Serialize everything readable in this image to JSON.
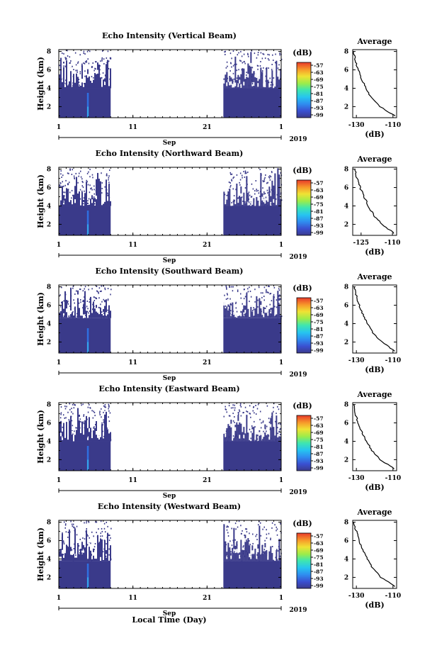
{
  "figure": {
    "xlabel": "Local Time (Day)",
    "month_label": "Sep",
    "year_label": "2019",
    "average_title": "Average",
    "average_xlabel": "(dB)",
    "cbar_unit": "(dB)"
  },
  "chart_data": [
    {
      "type": "heatmap",
      "title": "Echo Intensity (Vertical Beam)",
      "ylabel": "Height (km)",
      "xlim": [
        1,
        31
      ],
      "ylim": [
        0.8,
        8.2
      ],
      "x_ticks": [
        "1",
        "11",
        "21",
        "1"
      ],
      "y_ticks": [
        "2",
        "4",
        "6",
        "8"
      ],
      "data_gap_days": [
        8.0,
        23.2
      ],
      "colorbar": {
        "unit": "(dB)",
        "ticks": [
          "-57",
          "-63",
          "-69",
          "-75",
          "-81",
          "-87",
          "-93",
          "-99"
        ]
      },
      "average_profile": {
        "title": "Average",
        "xlabel": "(dB)",
        "x_ticks": [
          "-130",
          "-110"
        ],
        "y_ticks": [
          "2",
          "4",
          "6",
          "8"
        ],
        "xlim": [
          -132,
          -108
        ],
        "height_km": [
          1,
          2,
          3,
          4,
          5,
          6,
          7,
          8
        ],
        "intensity_db": [
          -109,
          -117,
          -122,
          -124.5,
          -127,
          -129,
          -130.5,
          -131.5
        ]
      }
    },
    {
      "type": "heatmap",
      "title": "Echo Intensity (Northward Beam)",
      "ylabel": "Height (km)",
      "xlim": [
        1,
        31
      ],
      "ylim": [
        0.8,
        8.2
      ],
      "x_ticks": [
        "1",
        "11",
        "21",
        "1"
      ],
      "y_ticks": [
        "2",
        "4",
        "6",
        "8"
      ],
      "data_gap_days": [
        8.0,
        23.2
      ],
      "colorbar": {
        "unit": "(dB)",
        "ticks": [
          "-57",
          "-63",
          "-69",
          "-75",
          "-81",
          "-87",
          "-93",
          "-99"
        ]
      },
      "average_profile": {
        "title": "Average",
        "xlabel": "(dB)",
        "x_ticks": [
          "-125",
          "-110"
        ],
        "y_ticks": [
          "2",
          "4",
          "6",
          "8"
        ],
        "xlim": [
          -129,
          -108
        ],
        "height_km": [
          1,
          2,
          3,
          4,
          5,
          6,
          7,
          8
        ],
        "intensity_db": [
          -109,
          -115,
          -119,
          -121.5,
          -123.5,
          -125.5,
          -127,
          -128
        ]
      }
    },
    {
      "type": "heatmap",
      "title": "Echo Intensity (Southward Beam)",
      "ylabel": "Height (km)",
      "xlim": [
        1,
        31
      ],
      "ylim": [
        0.8,
        8.2
      ],
      "x_ticks": [
        "1",
        "11",
        "21",
        "1"
      ],
      "y_ticks": [
        "2",
        "4",
        "6",
        "8"
      ],
      "data_gap_days": [
        8.0,
        23.2
      ],
      "colorbar": {
        "unit": "(dB)",
        "ticks": [
          "-57",
          "-63",
          "-69",
          "-75",
          "-81",
          "-87",
          "-93",
          "-99"
        ]
      },
      "average_profile": {
        "title": "Average",
        "xlabel": "(dB)",
        "x_ticks": [
          "-130",
          "-110"
        ],
        "y_ticks": [
          "2",
          "4",
          "6",
          "8"
        ],
        "xlim": [
          -132,
          -108
        ],
        "height_km": [
          1,
          2,
          3,
          4,
          5,
          6,
          7,
          8
        ],
        "intensity_db": [
          -109,
          -116,
          -121,
          -124,
          -126.5,
          -128.5,
          -130,
          -131
        ]
      }
    },
    {
      "type": "heatmap",
      "title": "Echo Intensity (Eastward Beam)",
      "ylabel": "Height (km)",
      "xlim": [
        1,
        31
      ],
      "ylim": [
        0.8,
        8.2
      ],
      "x_ticks": [
        "1",
        "11",
        "21",
        "1"
      ],
      "y_ticks": [
        "2",
        "4",
        "6",
        "8"
      ],
      "data_gap_days": [
        8.0,
        23.2
      ],
      "colorbar": {
        "unit": "(dB)",
        "ticks": [
          "-57",
          "-63",
          "-69",
          "-75",
          "-81",
          "-87",
          "-93",
          "-99"
        ]
      },
      "average_profile": {
        "title": "Average",
        "xlabel": "(dB)",
        "x_ticks": [
          "-130",
          "-110"
        ],
        "y_ticks": [
          "2",
          "4",
          "6",
          "8"
        ],
        "xlim": [
          -132,
          -108
        ],
        "height_km": [
          1,
          2,
          3,
          4,
          5,
          6,
          7,
          8
        ],
        "intensity_db": [
          -109,
          -117,
          -121.5,
          -124.5,
          -127,
          -129,
          -130.5,
          -131.5
        ]
      }
    },
    {
      "type": "heatmap",
      "title": "Echo Intensity (Westward Beam)",
      "ylabel": "Height (km)",
      "xlim": [
        1,
        31
      ],
      "ylim": [
        0.8,
        8.2
      ],
      "x_ticks": [
        "1",
        "11",
        "21",
        "1"
      ],
      "y_ticks": [
        "2",
        "4",
        "6",
        "8"
      ],
      "data_gap_days": [
        8.0,
        23.2
      ],
      "colorbar": {
        "unit": "(dB)",
        "ticks": [
          "-57",
          "-63",
          "-69",
          "-75",
          "-81",
          "-87",
          "-93",
          "-99"
        ]
      },
      "average_profile": {
        "title": "Average",
        "xlabel": "(dB)",
        "x_ticks": [
          "-130",
          "-110"
        ],
        "y_ticks": [
          "2",
          "4",
          "6",
          "8"
        ],
        "xlim": [
          -132,
          -108
        ],
        "height_km": [
          1,
          2,
          3,
          4,
          5,
          6,
          7,
          8
        ],
        "intensity_db": [
          -109,
          -116.5,
          -121,
          -124,
          -126.5,
          -128.5,
          -130,
          -131.5
        ]
      }
    }
  ]
}
